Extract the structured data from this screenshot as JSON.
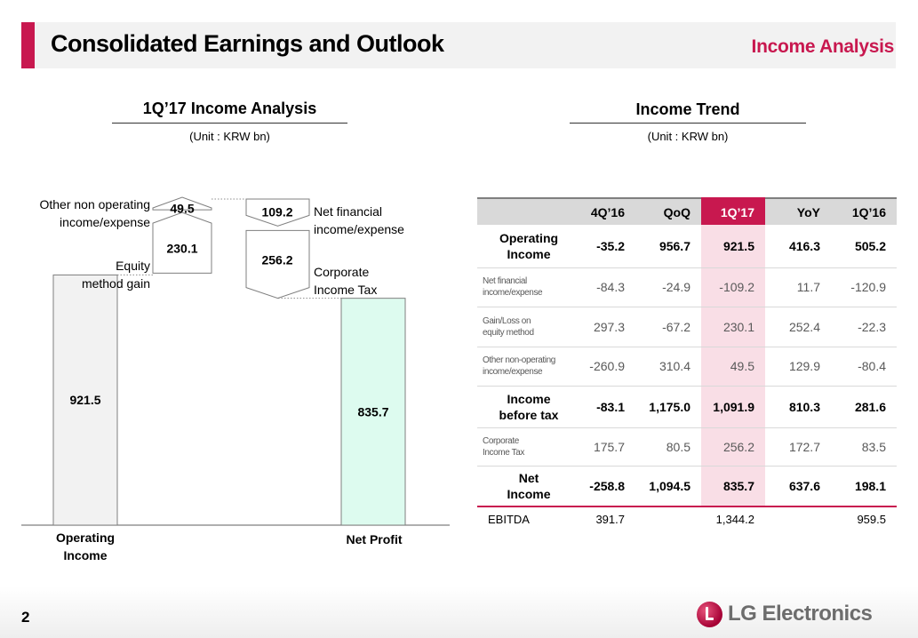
{
  "header": {
    "title": "Consolidated Earnings and Outlook",
    "section": "Income Analysis"
  },
  "left_panel": {
    "title": "1Q’17 Income Analysis",
    "unit": "(Unit : KRW bn)"
  },
  "right_panel": {
    "title": "Income Trend",
    "unit": "(Unit : KRW bn)"
  },
  "chart_data": [
    {
      "type": "waterfall",
      "title": "1Q’17 Income Analysis",
      "unit": "(Unit : KRW bn)",
      "steps": [
        {
          "label": "Operating Income",
          "value": 921.5,
          "kind": "total",
          "display": "921.5"
        },
        {
          "label": "Equity method gain",
          "value": 230.1,
          "kind": "increase",
          "display": "230.1"
        },
        {
          "label": "Other non operating income/expense",
          "value": 49.5,
          "kind": "increase",
          "display": "49.5"
        },
        {
          "label": "Net financial income/expense",
          "value": -109.2,
          "kind": "decrease",
          "display": "109.2"
        },
        {
          "label": "Corporate Income Tax",
          "value": -256.2,
          "kind": "decrease",
          "display": "256.2"
        },
        {
          "label": "Net Profit",
          "value": 835.7,
          "kind": "total",
          "display": "835.7"
        }
      ],
      "axis_labels": [
        "Operating Income",
        "Net Profit"
      ],
      "colors": {
        "start_bar": "#f2f2f2",
        "end_bar": "#ddfbef",
        "border": "#7f7f7f"
      }
    },
    {
      "type": "table",
      "title": "Income Trend",
      "unit": "(Unit : KRW bn)",
      "columns": [
        "",
        "4Q’16",
        "QoQ",
        "1Q’17",
        "YoY",
        "1Q’16"
      ],
      "highlight_column": "1Q’17",
      "rows": [
        {
          "label": [
            "Operating",
            "Income"
          ],
          "emphasis": true,
          "values": [
            "-35.2",
            "956.7",
            "921.5",
            "416.3",
            "505.2"
          ]
        },
        {
          "label": [
            "Net financial",
            "income/expense"
          ],
          "emphasis": false,
          "values": [
            "-84.3",
            "-24.9",
            "-109.2",
            "11.7",
            "-120.9"
          ]
        },
        {
          "label": [
            "Gain/Loss on",
            "equity method"
          ],
          "emphasis": false,
          "values": [
            "297.3",
            "-67.2",
            "230.1",
            "252.4",
            "-22.3"
          ]
        },
        {
          "label": [
            "Other non-operating",
            "income/expense"
          ],
          "emphasis": false,
          "values": [
            "-260.9",
            "310.4",
            "49.5",
            "129.9",
            "-80.4"
          ]
        },
        {
          "label": [
            "Income",
            "before tax"
          ],
          "emphasis": true,
          "values": [
            "-83.1",
            "1,175.0",
            "1,091.9",
            "810.3",
            "281.6"
          ]
        },
        {
          "label": [
            "Corporate",
            "Income Tax"
          ],
          "emphasis": false,
          "values": [
            "175.7",
            "80.5",
            "256.2",
            "172.7",
            "83.5"
          ]
        },
        {
          "label": [
            "Net",
            "Income"
          ],
          "emphasis": true,
          "values": [
            "-258.8",
            "1,094.5",
            "835.7",
            "637.6",
            "198.1"
          ]
        }
      ],
      "ebitda": {
        "label": "EBITDA",
        "values": [
          "391.7",
          "",
          "1,344.2",
          "",
          "959.5"
        ]
      }
    }
  ],
  "footer": {
    "page_number": "2",
    "logo_text": "LG Electronics",
    "logo_icon": "lg-logo-icon"
  }
}
